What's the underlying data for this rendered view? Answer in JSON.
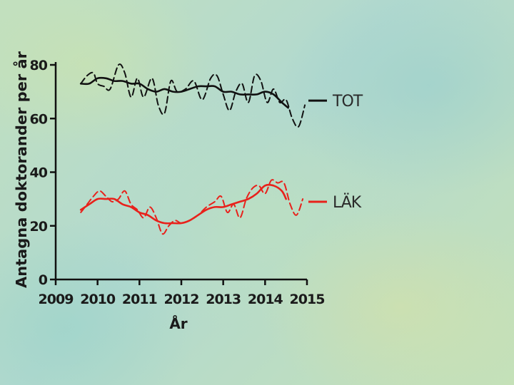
{
  "chart_data": {
    "type": "line",
    "title": "",
    "xlabel": "År",
    "ylabel": "Antagna doktorander per år",
    "xlim": [
      2009,
      2015
    ],
    "ylim": [
      0,
      80
    ],
    "xticks": [
      "2009",
      "2010",
      "2011",
      "2012",
      "2013",
      "2014",
      "2015"
    ],
    "yticks": [
      "0",
      "20",
      "40",
      "60",
      "80"
    ],
    "grid": false,
    "legend_position": "right",
    "series": [
      {
        "name": "TOT",
        "color": "#111111",
        "style": "dashed",
        "x": [
          2009.6,
          2009.75,
          2009.9,
          2010.0,
          2010.15,
          2010.3,
          2010.5,
          2010.65,
          2010.8,
          2010.95,
          2011.1,
          2011.3,
          2011.45,
          2011.6,
          2011.75,
          2011.9,
          2012.1,
          2012.3,
          2012.5,
          2012.7,
          2012.85,
          2013.0,
          2013.15,
          2013.3,
          2013.45,
          2013.6,
          2013.75,
          2013.9,
          2014.05,
          2014.2,
          2014.35,
          2014.5,
          2014.65,
          2014.8,
          2014.95
        ],
        "y": [
          73,
          76,
          77,
          73,
          72,
          71,
          80,
          77,
          68,
          75,
          68,
          75,
          65,
          62,
          74,
          70,
          71,
          74,
          67,
          75,
          76,
          69,
          63,
          70,
          73,
          66,
          76,
          74,
          66,
          71,
          66,
          67,
          60,
          57,
          65
        ]
      },
      {
        "name": "",
        "color": "#111111",
        "style": "solid",
        "x": [
          2009.6,
          2009.8,
          2010.0,
          2010.2,
          2010.4,
          2010.6,
          2010.8,
          2011.0,
          2011.2,
          2011.4,
          2011.6,
          2011.8,
          2012.0,
          2012.2,
          2012.4,
          2012.6,
          2012.8,
          2013.0,
          2013.2,
          2013.4,
          2013.6,
          2013.8,
          2014.0,
          2014.2,
          2014.4,
          2014.55
        ],
        "y": [
          73,
          73,
          75,
          75,
          74,
          74,
          73,
          73,
          71,
          70,
          71,
          70,
          70,
          71,
          72,
          72,
          72,
          70,
          70,
          69,
          69,
          69,
          70,
          69,
          66,
          64
        ]
      },
      {
        "name": "LÄK",
        "color": "#e8211b",
        "style": "dashed",
        "x": [
          2009.6,
          2009.75,
          2009.9,
          2010.05,
          2010.2,
          2010.35,
          2010.5,
          2010.65,
          2010.8,
          2010.95,
          2011.1,
          2011.25,
          2011.4,
          2011.55,
          2011.7,
          2011.85,
          2012.0,
          2012.2,
          2012.4,
          2012.6,
          2012.8,
          2012.95,
          2013.1,
          2013.25,
          2013.4,
          2013.55,
          2013.7,
          2013.85,
          2014.0,
          2014.15,
          2014.3,
          2014.45,
          2014.6,
          2014.75,
          2014.9
        ],
        "y": [
          25,
          28,
          31,
          33,
          31,
          29,
          30,
          33,
          28,
          26,
          23,
          27,
          23,
          17,
          20,
          22,
          21,
          22,
          24,
          27,
          29,
          31,
          25,
          28,
          23,
          30,
          34,
          35,
          32,
          37,
          36,
          36,
          28,
          24,
          30
        ]
      },
      {
        "name": "",
        "color": "#e8211b",
        "style": "solid",
        "x": [
          2009.6,
          2009.8,
          2010.0,
          2010.2,
          2010.4,
          2010.6,
          2010.8,
          2011.0,
          2011.2,
          2011.4,
          2011.6,
          2011.8,
          2012.0,
          2012.2,
          2012.4,
          2012.6,
          2012.8,
          2013.0,
          2013.2,
          2013.4,
          2013.6,
          2013.8,
          2014.0,
          2014.2,
          2014.4,
          2014.5
        ],
        "y": [
          26,
          28,
          30,
          30,
          30,
          28,
          27,
          25,
          24,
          22,
          21,
          21,
          21,
          22,
          24,
          26,
          27,
          27,
          28,
          29,
          30,
          32,
          35,
          35,
          33,
          30
        ]
      }
    ]
  }
}
